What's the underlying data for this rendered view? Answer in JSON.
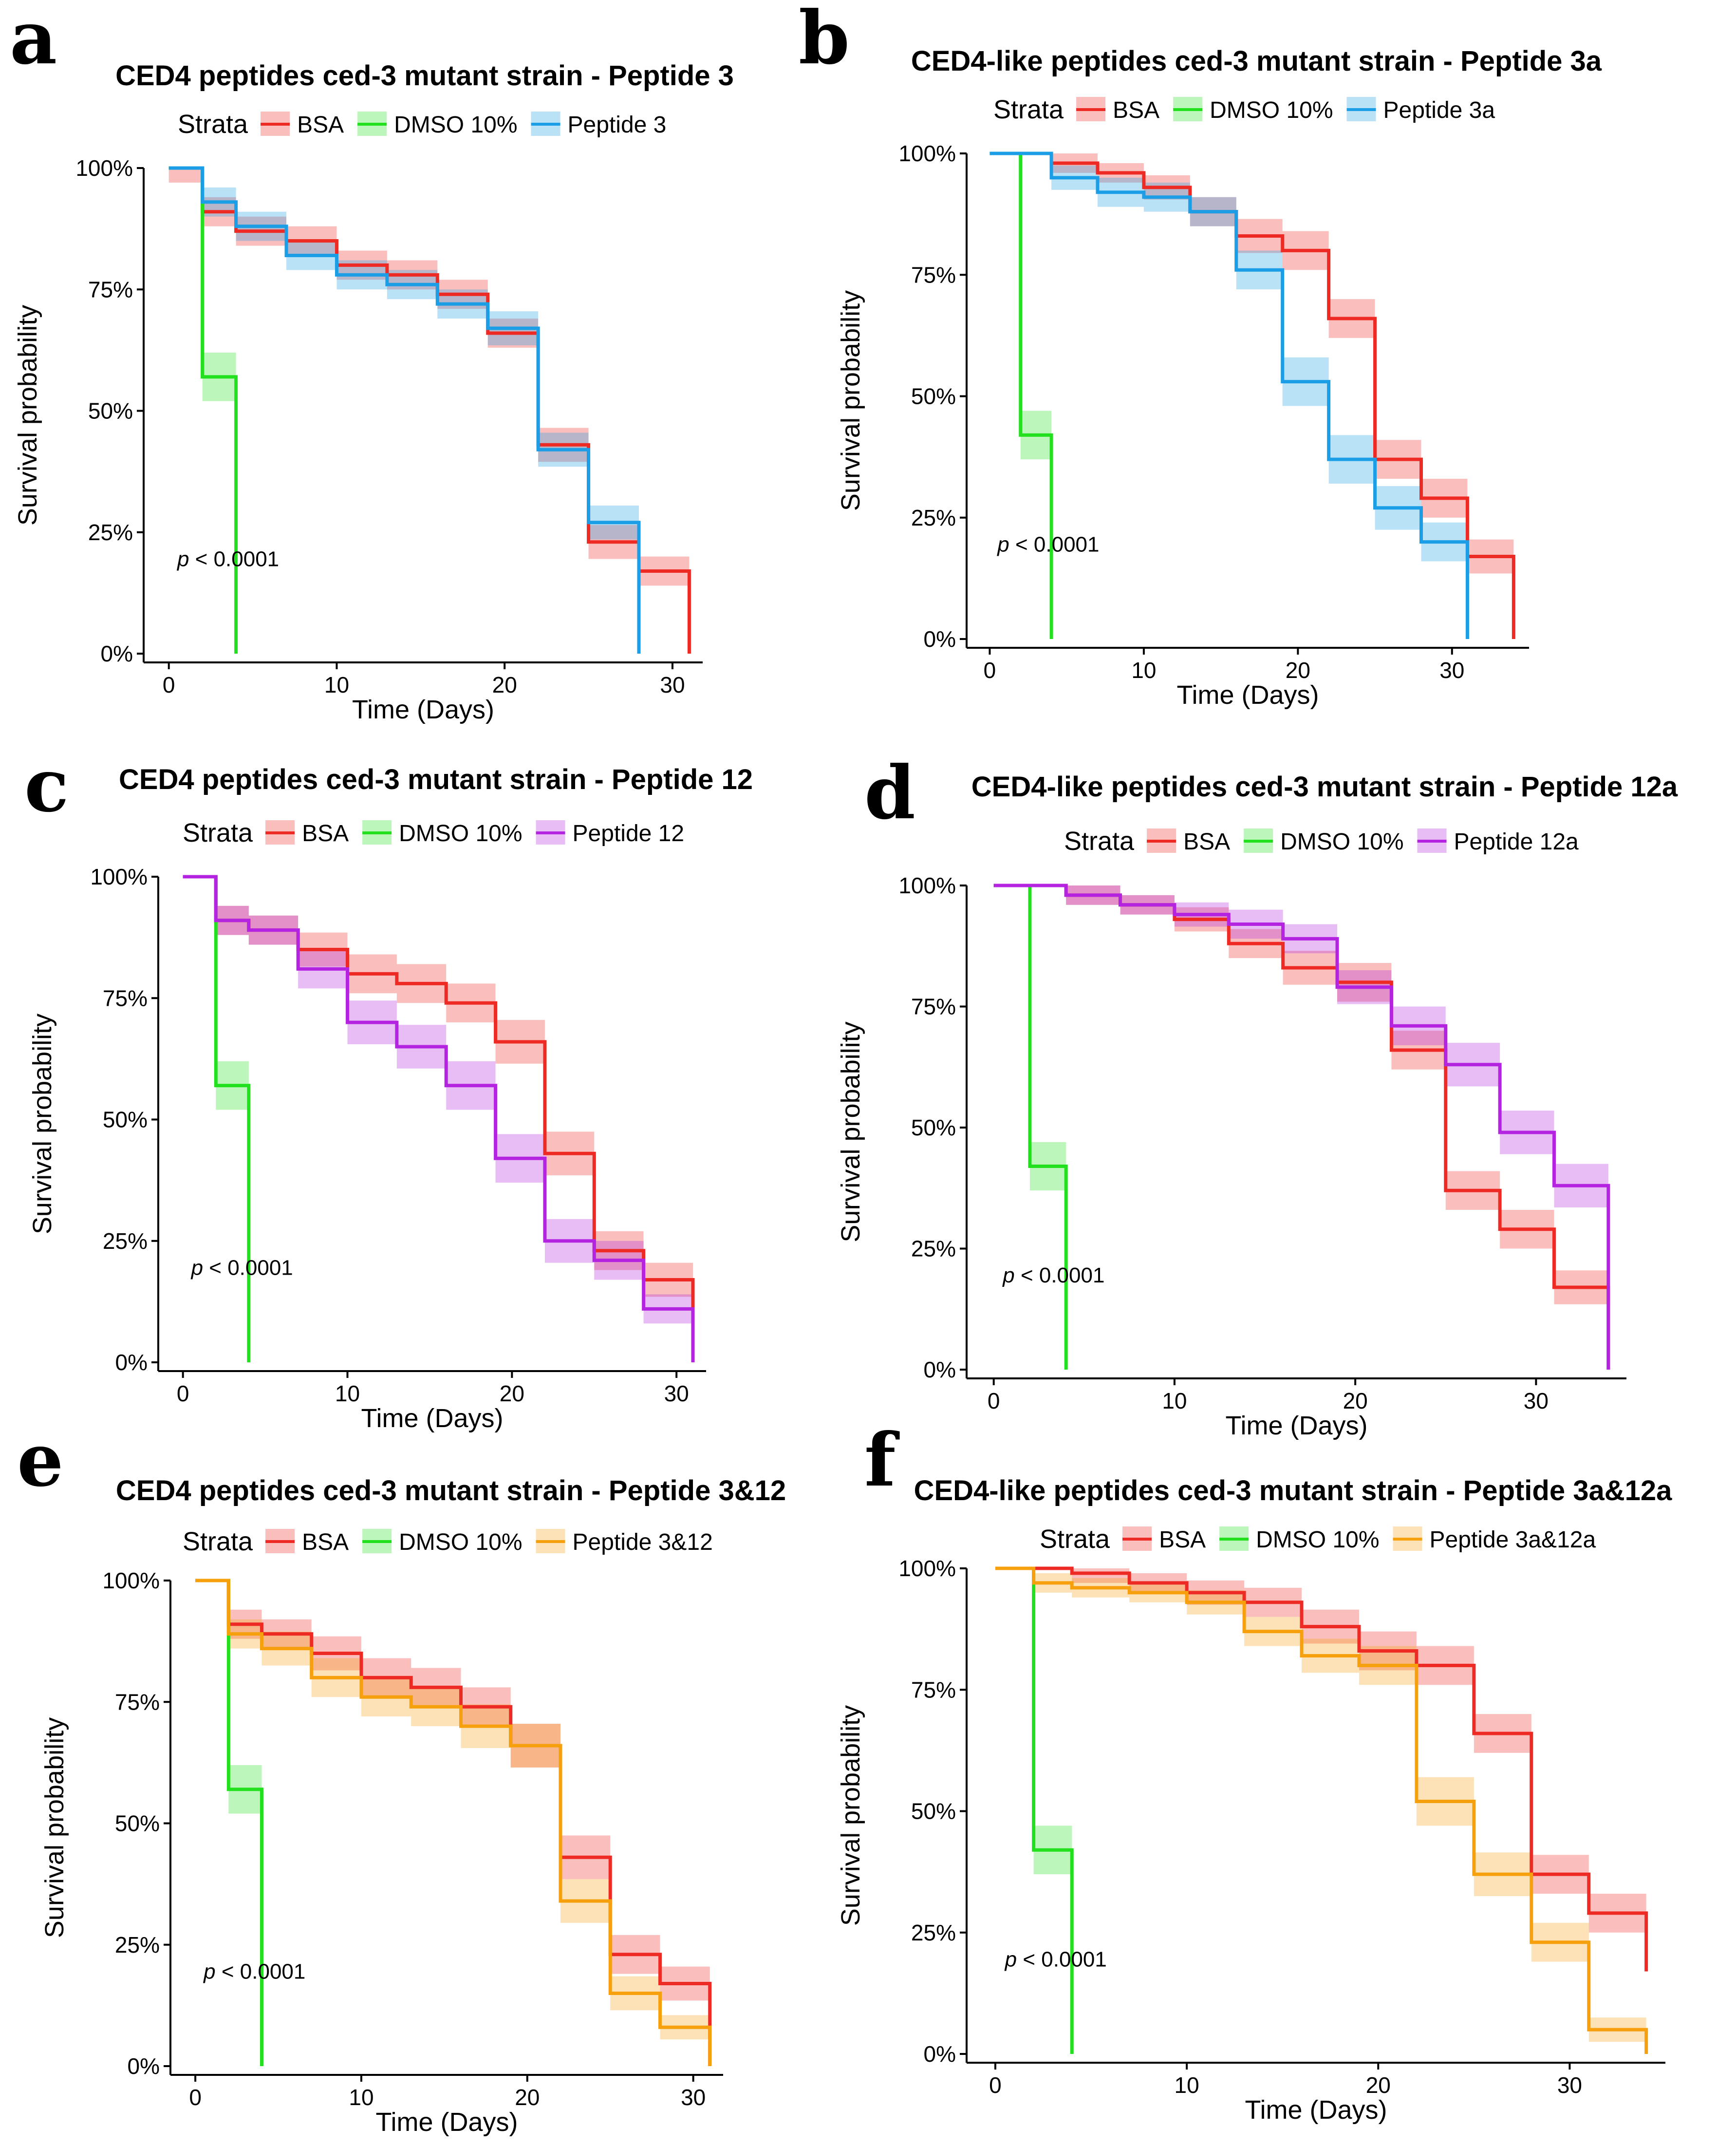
{
  "figure": {
    "strata_label": "Strata",
    "x_label": "Time (Days)",
    "y_label": "Survival probability",
    "p_prefix": "p",
    "p_text": " < 0.0001",
    "colors": {
      "bsa": "#ee2a24",
      "dmso": "#22e01e",
      "blue": "#1b9ee5",
      "purple": "#b423e0",
      "orange": "#f5a00c"
    }
  },
  "chart_data": [
    {
      "panel": "a",
      "type": "line",
      "title": "CED4 peptides ced-3 mutant strain - Peptide 3",
      "xlabel": "Time (Days)",
      "ylabel": "Survival probability",
      "xlim": [
        -1.5,
        31.8
      ],
      "ylim": [
        0,
        1
      ],
      "x_ticks": [
        0,
        10,
        20,
        30
      ],
      "y_ticks": [
        "0%",
        "25%",
        "50%",
        "75%",
        "100%"
      ],
      "annotation": "p < 0.0001",
      "series": [
        {
          "name": "BSA",
          "color_key": "bsa",
          "steps": [
            [
              0,
              1.0
            ],
            [
              2,
              0.91
            ],
            [
              4,
              0.87
            ],
            [
              7,
              0.85
            ],
            [
              10,
              0.8
            ],
            [
              13,
              0.78
            ],
            [
              16,
              0.74
            ],
            [
              19,
              0.66
            ],
            [
              22,
              0.43
            ],
            [
              25,
              0.23
            ],
            [
              28,
              0.17
            ],
            [
              31,
              0.0
            ]
          ],
          "band": [
            0.03,
            0.03,
            0.03,
            0.03,
            0.03,
            0.03,
            0.03,
            0.03,
            0.035,
            0.035,
            0.03,
            0.0
          ]
        },
        {
          "name": "DMSO 10%",
          "color_key": "dmso",
          "steps": [
            [
              0,
              1.0
            ],
            [
              2,
              0.57
            ],
            [
              4,
              0.0
            ]
          ],
          "band": [
            0.0,
            0.05,
            0.0
          ]
        },
        {
          "name": "Peptide 3",
          "color_key": "blue",
          "steps": [
            [
              0,
              1.0
            ],
            [
              2,
              0.93
            ],
            [
              4,
              0.88
            ],
            [
              7,
              0.82
            ],
            [
              10,
              0.78
            ],
            [
              13,
              0.76
            ],
            [
              16,
              0.72
            ],
            [
              19,
              0.67
            ],
            [
              22,
              0.42
            ],
            [
              25,
              0.27
            ],
            [
              28,
              0.0
            ]
          ],
          "band": [
            0.0,
            0.03,
            0.03,
            0.03,
            0.03,
            0.03,
            0.03,
            0.035,
            0.035,
            0.035,
            0.0
          ]
        }
      ]
    },
    {
      "panel": "b",
      "type": "line",
      "title": "CED4-like peptides ced-3 mutant strain - Peptide 3a",
      "xlabel": "Time (Days)",
      "ylabel": "Survival probability",
      "xlim": [
        -1.5,
        35
      ],
      "ylim": [
        0,
        1
      ],
      "x_ticks": [
        0,
        10,
        20,
        30
      ],
      "y_ticks": [
        "0%",
        "25%",
        "50%",
        "75%",
        "100%"
      ],
      "annotation": "p < 0.0001",
      "series": [
        {
          "name": "BSA",
          "color_key": "bsa",
          "steps": [
            [
              0,
              1.0
            ],
            [
              4,
              0.98
            ],
            [
              7,
              0.96
            ],
            [
              10,
              0.93
            ],
            [
              13,
              0.88
            ],
            [
              16,
              0.83
            ],
            [
              19,
              0.8
            ],
            [
              22,
              0.66
            ],
            [
              25,
              0.37
            ],
            [
              28,
              0.29
            ],
            [
              31,
              0.17
            ],
            [
              34,
              0.0
            ]
          ],
          "band": [
            0.0,
            0.02,
            0.02,
            0.025,
            0.03,
            0.035,
            0.04,
            0.04,
            0.04,
            0.04,
            0.035,
            0.0
          ]
        },
        {
          "name": "DMSO 10%",
          "color_key": "dmso",
          "steps": [
            [
              0,
              1.0
            ],
            [
              2,
              0.42
            ],
            [
              4,
              0.0
            ]
          ],
          "band": [
            0.0,
            0.05,
            0.0
          ]
        },
        {
          "name": "Peptide 3a",
          "color_key": "blue",
          "steps": [
            [
              0,
              1.0
            ],
            [
              4,
              0.95
            ],
            [
              7,
              0.92
            ],
            [
              10,
              0.91
            ],
            [
              13,
              0.88
            ],
            [
              16,
              0.76
            ],
            [
              19,
              0.53
            ],
            [
              22,
              0.37
            ],
            [
              25,
              0.27
            ],
            [
              28,
              0.2
            ],
            [
              31,
              0.0
            ]
          ],
          "band": [
            0.0,
            0.025,
            0.03,
            0.03,
            0.03,
            0.04,
            0.05,
            0.05,
            0.045,
            0.04,
            0.0
          ]
        }
      ]
    },
    {
      "panel": "c",
      "type": "line",
      "title": "CED4 peptides ced-3 mutant strain - Peptide 12",
      "xlabel": "Time (Days)",
      "ylabel": "Survival probability",
      "xlim": [
        -1.5,
        31.8
      ],
      "ylim": [
        0,
        1
      ],
      "x_ticks": [
        0,
        10,
        20,
        30
      ],
      "y_ticks": [
        "0%",
        "25%",
        "50%",
        "75%",
        "100%"
      ],
      "annotation": "p < 0.0001",
      "series": [
        {
          "name": "BSA",
          "color_key": "bsa",
          "steps": [
            [
              0,
              1.0
            ],
            [
              2,
              0.91
            ],
            [
              4,
              0.89
            ],
            [
              7,
              0.85
            ],
            [
              10,
              0.8
            ],
            [
              13,
              0.78
            ],
            [
              16,
              0.74
            ],
            [
              19,
              0.66
            ],
            [
              22,
              0.43
            ],
            [
              25,
              0.23
            ],
            [
              28,
              0.17
            ],
            [
              31,
              0.0
            ]
          ],
          "band": [
            0.0,
            0.03,
            0.03,
            0.035,
            0.04,
            0.04,
            0.04,
            0.045,
            0.045,
            0.04,
            0.035,
            0.0
          ]
        },
        {
          "name": "DMSO 10%",
          "color_key": "dmso",
          "steps": [
            [
              0,
              1.0
            ],
            [
              2,
              0.57
            ],
            [
              4,
              0.0
            ]
          ],
          "band": [
            0.0,
            0.05,
            0.0
          ]
        },
        {
          "name": "Peptide 12",
          "color_key": "purple",
          "steps": [
            [
              0,
              1.0
            ],
            [
              2,
              0.91
            ],
            [
              4,
              0.89
            ],
            [
              7,
              0.81
            ],
            [
              10,
              0.7
            ],
            [
              13,
              0.65
            ],
            [
              16,
              0.57
            ],
            [
              19,
              0.42
            ],
            [
              22,
              0.25
            ],
            [
              25,
              0.21
            ],
            [
              28,
              0.11
            ],
            [
              31,
              0.0
            ]
          ],
          "band": [
            0.0,
            0.03,
            0.03,
            0.04,
            0.045,
            0.045,
            0.05,
            0.05,
            0.045,
            0.04,
            0.03,
            0.0
          ]
        }
      ]
    },
    {
      "panel": "d",
      "type": "line",
      "title": "CED4-like peptides ced-3 mutant strain - Peptide 12a",
      "xlabel": "Time (Days)",
      "ylabel": "Survival probability",
      "xlim": [
        -1.5,
        35
      ],
      "ylim": [
        0,
        1
      ],
      "x_ticks": [
        0,
        10,
        20,
        30
      ],
      "y_ticks": [
        "0%",
        "25%",
        "50%",
        "75%",
        "100%"
      ],
      "annotation": "p < 0.0001",
      "series": [
        {
          "name": "BSA",
          "color_key": "bsa",
          "steps": [
            [
              0,
              1.0
            ],
            [
              4,
              0.98
            ],
            [
              7,
              0.96
            ],
            [
              10,
              0.93
            ],
            [
              13,
              0.88
            ],
            [
              16,
              0.83
            ],
            [
              19,
              0.8
            ],
            [
              22,
              0.66
            ],
            [
              25,
              0.37
            ],
            [
              28,
              0.29
            ],
            [
              31,
              0.17
            ],
            [
              34,
              0.0
            ]
          ],
          "band": [
            0.0,
            0.02,
            0.02,
            0.025,
            0.03,
            0.035,
            0.04,
            0.04,
            0.04,
            0.04,
            0.035,
            0.0
          ]
        },
        {
          "name": "DMSO 10%",
          "color_key": "dmso",
          "steps": [
            [
              0,
              1.0
            ],
            [
              2,
              0.42
            ],
            [
              4,
              0.0
            ]
          ],
          "band": [
            0.0,
            0.05,
            0.0
          ]
        },
        {
          "name": "Peptide 12a",
          "color_key": "purple",
          "steps": [
            [
              0,
              1.0
            ],
            [
              4,
              0.98
            ],
            [
              7,
              0.96
            ],
            [
              10,
              0.94
            ],
            [
              13,
              0.92
            ],
            [
              16,
              0.89
            ],
            [
              19,
              0.79
            ],
            [
              22,
              0.71
            ],
            [
              25,
              0.63
            ],
            [
              28,
              0.49
            ],
            [
              31,
              0.38
            ],
            [
              34,
              0.0
            ]
          ],
          "band": [
            0.0,
            0.02,
            0.02,
            0.025,
            0.03,
            0.03,
            0.035,
            0.04,
            0.045,
            0.045,
            0.045,
            0.0
          ]
        }
      ]
    },
    {
      "panel": "e",
      "type": "line",
      "title": "CED4 peptides ced-3 mutant strain - Peptide 3&12",
      "xlabel": "Time (Days)",
      "ylabel": "Survival probability",
      "xlim": [
        -1.5,
        31.8
      ],
      "ylim": [
        0,
        1
      ],
      "x_ticks": [
        0,
        10,
        20,
        30
      ],
      "y_ticks": [
        "0%",
        "25%",
        "50%",
        "75%",
        "100%"
      ],
      "annotation": "p < 0.0001",
      "series": [
        {
          "name": "BSA",
          "color_key": "bsa",
          "steps": [
            [
              0,
              1.0
            ],
            [
              2,
              0.91
            ],
            [
              4,
              0.89
            ],
            [
              7,
              0.85
            ],
            [
              10,
              0.8
            ],
            [
              13,
              0.78
            ],
            [
              16,
              0.74
            ],
            [
              19,
              0.66
            ],
            [
              22,
              0.43
            ],
            [
              25,
              0.23
            ],
            [
              28,
              0.17
            ],
            [
              31,
              0.0
            ]
          ],
          "band": [
            0.0,
            0.03,
            0.03,
            0.035,
            0.04,
            0.04,
            0.04,
            0.045,
            0.045,
            0.04,
            0.035,
            0.0
          ]
        },
        {
          "name": "DMSO 10%",
          "color_key": "dmso",
          "steps": [
            [
              0,
              1.0
            ],
            [
              2,
              0.57
            ],
            [
              4,
              0.0
            ]
          ],
          "band": [
            0.0,
            0.05,
            0.0
          ]
        },
        {
          "name": "Peptide 3&12",
          "color_key": "orange",
          "steps": [
            [
              0,
              1.0
            ],
            [
              2,
              0.89
            ],
            [
              4,
              0.86
            ],
            [
              7,
              0.8
            ],
            [
              10,
              0.76
            ],
            [
              13,
              0.74
            ],
            [
              16,
              0.7
            ],
            [
              19,
              0.66
            ],
            [
              22,
              0.34
            ],
            [
              25,
              0.15
            ],
            [
              28,
              0.08
            ],
            [
              31,
              0.0
            ]
          ],
          "band": [
            0.0,
            0.03,
            0.035,
            0.04,
            0.04,
            0.04,
            0.045,
            0.045,
            0.045,
            0.035,
            0.025,
            0.0
          ]
        }
      ]
    },
    {
      "panel": "f",
      "type": "line",
      "title": "CED4-like peptides ced-3 mutant strain - Peptide 3a&12a",
      "xlabel": "Time (Days)",
      "ylabel": "Survival probability",
      "xlim": [
        -1.5,
        35
      ],
      "ylim": [
        0,
        1
      ],
      "x_ticks": [
        0,
        10,
        20,
        30
      ],
      "y_ticks": [
        "0%",
        "25%",
        "50%",
        "75%",
        "100%"
      ],
      "annotation": "p < 0.0001",
      "series": [
        {
          "name": "BSA",
          "color_key": "bsa",
          "steps": [
            [
              0,
              1.0
            ],
            [
              4,
              0.99
            ],
            [
              7,
              0.97
            ],
            [
              10,
              0.95
            ],
            [
              13,
              0.93
            ],
            [
              16,
              0.88
            ],
            [
              19,
              0.83
            ],
            [
              22,
              0.8
            ],
            [
              25,
              0.66
            ],
            [
              28,
              0.37
            ],
            [
              31,
              0.29
            ],
            [
              34,
              0.17
            ]
          ],
          "band": [
            0.0,
            0.02,
            0.02,
            0.025,
            0.03,
            0.035,
            0.04,
            0.04,
            0.04,
            0.04,
            0.04,
            0.035
          ]
        },
        {
          "name": "DMSO 10%",
          "color_key": "dmso",
          "steps": [
            [
              0,
              1.0
            ],
            [
              2,
              0.42
            ],
            [
              4,
              0.0
            ]
          ],
          "band": [
            0.0,
            0.05,
            0.0
          ]
        },
        {
          "name": "Peptide 3a&12a",
          "color_key": "orange",
          "steps": [
            [
              0,
              1.0
            ],
            [
              2,
              0.97
            ],
            [
              4,
              0.96
            ],
            [
              7,
              0.95
            ],
            [
              10,
              0.93
            ],
            [
              13,
              0.87
            ],
            [
              16,
              0.82
            ],
            [
              19,
              0.8
            ],
            [
              22,
              0.52
            ],
            [
              25,
              0.37
            ],
            [
              28,
              0.23
            ],
            [
              31,
              0.05
            ],
            [
              34,
              0.0
            ]
          ],
          "band": [
            0.0,
            0.02,
            0.02,
            0.02,
            0.025,
            0.03,
            0.035,
            0.04,
            0.05,
            0.045,
            0.04,
            0.025,
            0.0
          ]
        }
      ]
    }
  ]
}
